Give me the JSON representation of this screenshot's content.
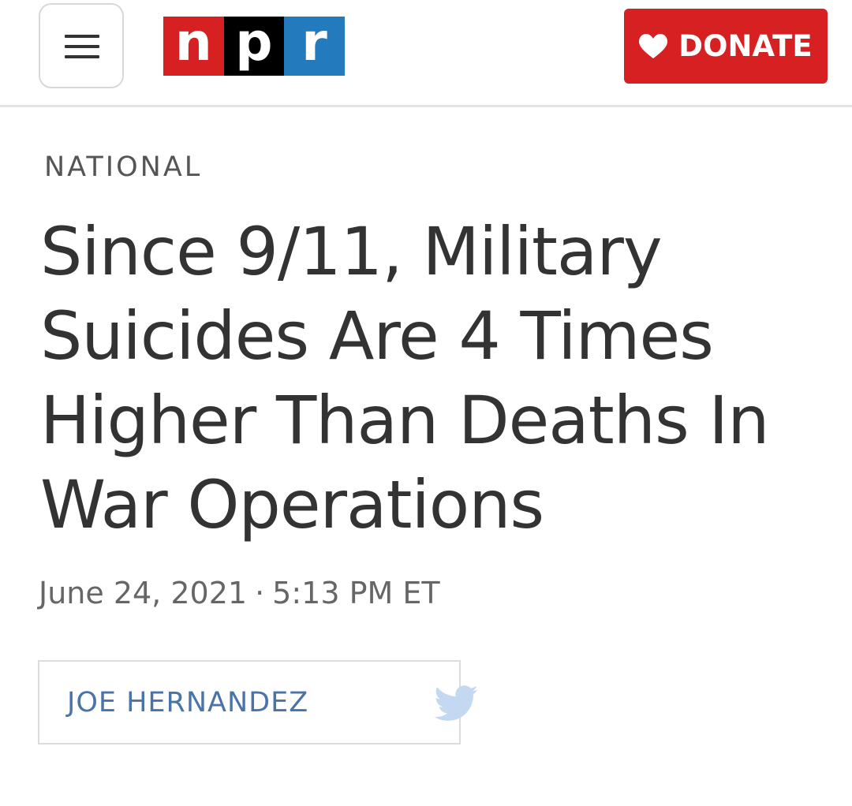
{
  "header": {
    "menu_icon": "hamburger-menu-icon",
    "logo": {
      "letters": [
        "n",
        "p",
        "r"
      ],
      "colors": [
        "#d62021",
        "#000000",
        "#237bbd"
      ]
    },
    "donate": {
      "icon": "heart-icon",
      "label": "DONATE",
      "color": "#d62021"
    }
  },
  "article": {
    "section": "NATIONAL",
    "headline": "Since 9/11, Military Suicides Are 4 Times Higher Than Deaths In War Operations",
    "date": "June 24, 2021",
    "separator": "·",
    "time": "5:13 PM ET",
    "byline": {
      "author": "JOE HERNANDEZ",
      "social_icon": "twitter-icon",
      "author_color": "#4a74a8"
    }
  }
}
